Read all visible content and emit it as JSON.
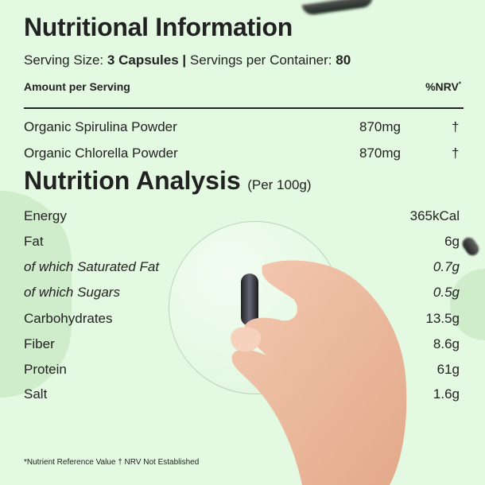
{
  "title": "Nutritional Information",
  "serving": {
    "size_label": "Serving Size:",
    "size_value": "3 Capsules",
    "separator": "|",
    "container_label": "Servings per Container:",
    "container_value": "80"
  },
  "table_header": {
    "amount": "Amount per Serving",
    "nrv": "%NRV",
    "nrv_mark": "*"
  },
  "ingredients": [
    {
      "name": "Organic Spirulina Powder",
      "amount": "870mg",
      "nrv": "†"
    },
    {
      "name": "Organic Chlorella Powder",
      "amount": "870mg",
      "nrv": "†"
    }
  ],
  "analysis": {
    "title": "Nutrition Analysis",
    "subtitle": "(Per 100g)",
    "rows": [
      {
        "name": "Energy",
        "value": "365kCal"
      },
      {
        "name": "Fat",
        "value": "6g"
      },
      {
        "name": "of which Saturated Fat",
        "value": "0.7g"
      },
      {
        "name": "of which Sugars",
        "value": "0.5g"
      },
      {
        "name": "Carbohydrates",
        "value": "13.5g"
      },
      {
        "name": "Fiber",
        "value": "8.6g"
      },
      {
        "name": "Protein",
        "value": "61g"
      },
      {
        "name": "Salt",
        "value": "1.6g"
      }
    ]
  },
  "footnote": "*Nutrient Reference Value † NRV Not Established",
  "colors": {
    "background": "#e3f9e1",
    "accent_circle": "#cfeccb",
    "text": "#222222"
  }
}
